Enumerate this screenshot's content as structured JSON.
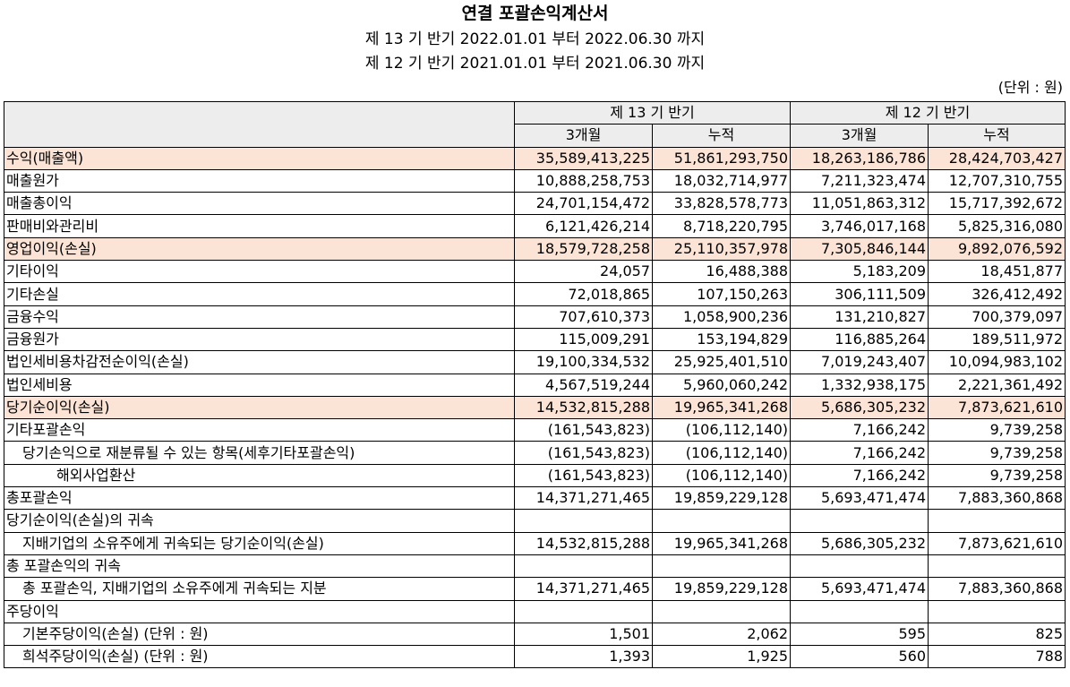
{
  "title": "연결 포괄손익계산서",
  "period_current": "제 13 기 반기 2022.01.01 부터 2022.06.30 까지",
  "period_prior": "제 12 기 반기 2021.01.01 부터 2021.06.30 까지",
  "unit": "(단위 : 원)",
  "columns": {
    "group_current": "제 13 기 반기",
    "group_prior": "제 12 기 반기",
    "three_month": "3개월",
    "cumulative": "누적"
  },
  "rows": [
    {
      "label": "수익(매출액)",
      "v": [
        "35,589,413,225",
        "51,861,293,750",
        "18,263,186,786",
        "28,424,703,427"
      ]
    },
    {
      "label": "매출원가",
      "v": [
        "10,888,258,753",
        "18,032,714,977",
        "7,211,323,474",
        "12,707,310,755"
      ]
    },
    {
      "label": "매출총이익",
      "v": [
        "24,701,154,472",
        "33,828,578,773",
        "11,051,863,312",
        "15,717,392,672"
      ]
    },
    {
      "label": "판매비와관리비",
      "v": [
        "6,121,426,214",
        "8,718,220,795",
        "3,746,017,168",
        "5,825,316,080"
      ]
    },
    {
      "label": "영업이익(손실)",
      "v": [
        "18,579,728,258",
        "25,110,357,978",
        "7,305,846,144",
        "9,892,076,592"
      ]
    },
    {
      "label": "기타이익",
      "v": [
        "24,057",
        "16,488,388",
        "5,183,209",
        "18,451,877"
      ]
    },
    {
      "label": "기타손실",
      "v": [
        "72,018,865",
        "107,150,263",
        "306,111,509",
        "326,412,492"
      ]
    },
    {
      "label": "금융수익",
      "v": [
        "707,610,373",
        "1,058,900,236",
        "131,210,827",
        "700,379,097"
      ]
    },
    {
      "label": "금융원가",
      "v": [
        "115,009,291",
        "153,194,829",
        "116,885,264",
        "189,511,972"
      ]
    },
    {
      "label": "법인세비용차감전순이익(손실)",
      "v": [
        "19,100,334,532",
        "25,925,401,510",
        "7,019,243,407",
        "10,094,983,102"
      ]
    },
    {
      "label": "법인세비용",
      "v": [
        "4,567,519,244",
        "5,960,060,242",
        "1,332,938,175",
        "2,221,361,492"
      ]
    },
    {
      "label": "당기순이익(손실)",
      "v": [
        "14,532,815,288",
        "19,965,341,268",
        "5,686,305,232",
        "7,873,621,610"
      ]
    },
    {
      "label": "기타포괄손익",
      "v": [
        "(161,543,823)",
        "(106,112,140)",
        "7,166,242",
        "9,739,258"
      ]
    },
    {
      "label": "당기손익으로 재분류될 수 있는 항목(세후기타포괄손익)",
      "v": [
        "(161,543,823)",
        "(106,112,140)",
        "7,166,242",
        "9,739,258"
      ]
    },
    {
      "label": "해외사업환산",
      "v": [
        "(161,543,823)",
        "(106,112,140)",
        "7,166,242",
        "9,739,258"
      ]
    },
    {
      "label": "총포괄손익",
      "v": [
        "14,371,271,465",
        "19,859,229,128",
        "5,693,471,474",
        "7,883,360,868"
      ]
    },
    {
      "label": "당기순이익(손실)의 귀속",
      "v": [
        "",
        "",
        "",
        ""
      ]
    },
    {
      "label": "지배기업의 소유주에게 귀속되는 당기순이익(손실)",
      "v": [
        "14,532,815,288",
        "19,965,341,268",
        "5,686,305,232",
        "7,873,621,610"
      ]
    },
    {
      "label": "총 포괄손익의 귀속",
      "v": [
        "",
        "",
        "",
        ""
      ]
    },
    {
      "label": "총 포괄손익, 지배기업의 소유주에게 귀속되는 지분",
      "v": [
        "14,371,271,465",
        "19,859,229,128",
        "5,693,471,474",
        "7,883,360,868"
      ]
    },
    {
      "label": "주당이익",
      "v": [
        "",
        "",
        "",
        ""
      ]
    },
    {
      "label": "기본주당이익(손실) (단위 : 원)",
      "v": [
        "1,501",
        "2,062",
        "595",
        "825"
      ]
    },
    {
      "label": "희석주당이익(손실) (단위 : 원)",
      "v": [
        "1,393",
        "1,925",
        "560",
        "788"
      ]
    }
  ]
}
